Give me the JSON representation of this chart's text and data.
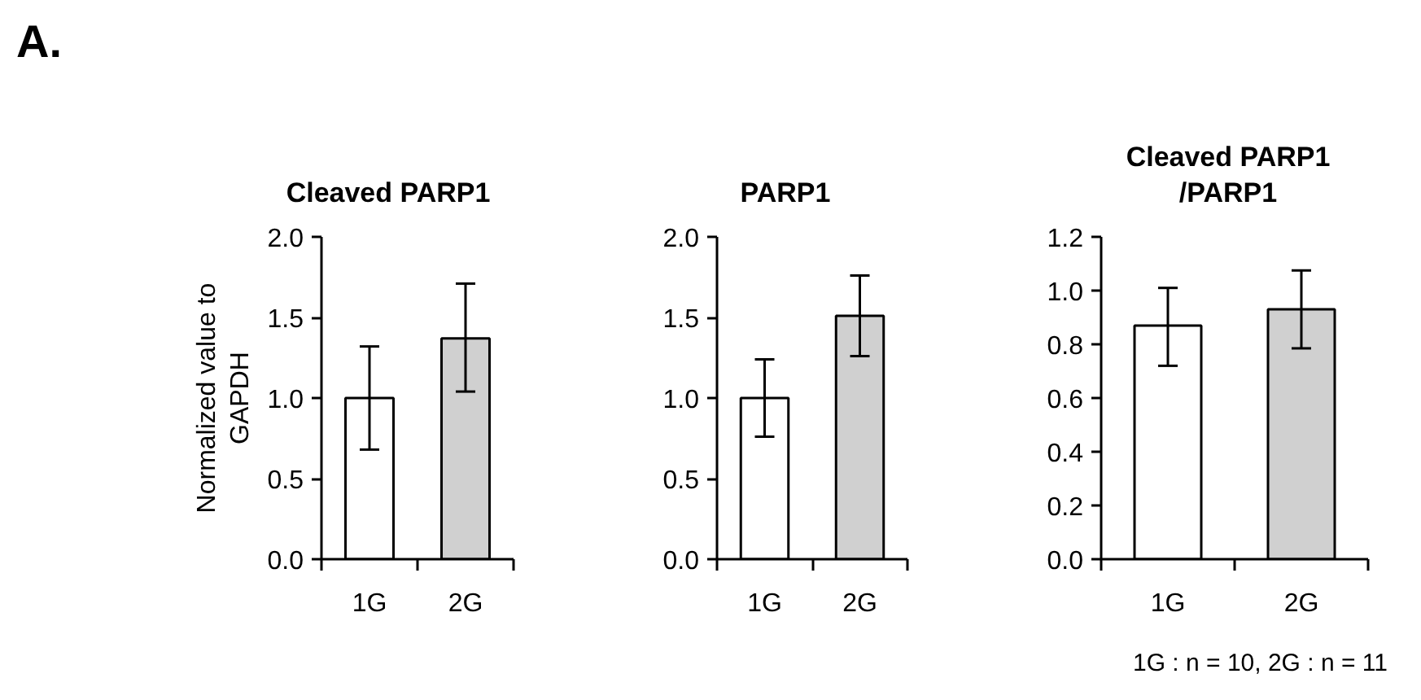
{
  "chart_data": [
    {
      "type": "bar",
      "title": "Cleaved PARP1",
      "ylabel": "Normalized value to GAPDH",
      "annotations": [
        "A."
      ],
      "categories": [
        "1G",
        "2G"
      ],
      "values": [
        1.0,
        1.37
      ],
      "colors": [
        "#ffffff",
        "#d0d0d0"
      ],
      "errors": [
        [
          0.68,
          1.32
        ],
        [
          1.04,
          1.71
        ]
      ],
      "ylim": [
        0,
        2
      ],
      "yticks": [
        {
          "value": 0,
          "label": "0.0"
        },
        {
          "value": 0.5,
          "label": "0.5"
        },
        {
          "value": 1,
          "label": "1.0"
        },
        {
          "value": 1.5,
          "label": "1.5"
        },
        {
          "value": 2,
          "label": "2.0"
        }
      ]
    },
    {
      "type": "bar",
      "title": "PARP1",
      "categories": [
        "1G",
        "2G"
      ],
      "values": [
        1.0,
        1.51
      ],
      "colors": [
        "#ffffff",
        "#d0d0d0"
      ],
      "errors": [
        [
          0.76,
          1.24
        ],
        [
          1.26,
          1.76
        ]
      ],
      "ylim": [
        0,
        2
      ],
      "yticks": [
        {
          "value": 0,
          "label": "0.0"
        },
        {
          "value": 0.5,
          "label": "0.5"
        },
        {
          "value": 1,
          "label": "1.0"
        },
        {
          "value": 1.5,
          "label": "1.5"
        },
        {
          "value": 2,
          "label": "2.0"
        }
      ]
    },
    {
      "type": "bar",
      "title": "Cleaved PARP1\n/PARP1",
      "annotations": [
        "1G : n = 10, 2G : n = 11"
      ],
      "categories": [
        "1G",
        "2G"
      ],
      "values": [
        0.87,
        0.93
      ],
      "colors": [
        "#ffffff",
        "#d0d0d0"
      ],
      "errors": [
        [
          0.72,
          1.01
        ],
        [
          0.785,
          1.075
        ]
      ],
      "ylim": [
        0,
        1.2
      ],
      "yticks": [
        {
          "value": 0,
          "label": "0.0"
        },
        {
          "value": 0.2,
          "label": "0.2"
        },
        {
          "value": 0.4,
          "label": "0.4"
        },
        {
          "value": 0.6,
          "label": "0.6"
        },
        {
          "value": 0.8,
          "label": "0.8"
        },
        {
          "value": 1,
          "label": "1.0"
        },
        {
          "value": 1.2,
          "label": "1.2"
        }
      ]
    }
  ]
}
